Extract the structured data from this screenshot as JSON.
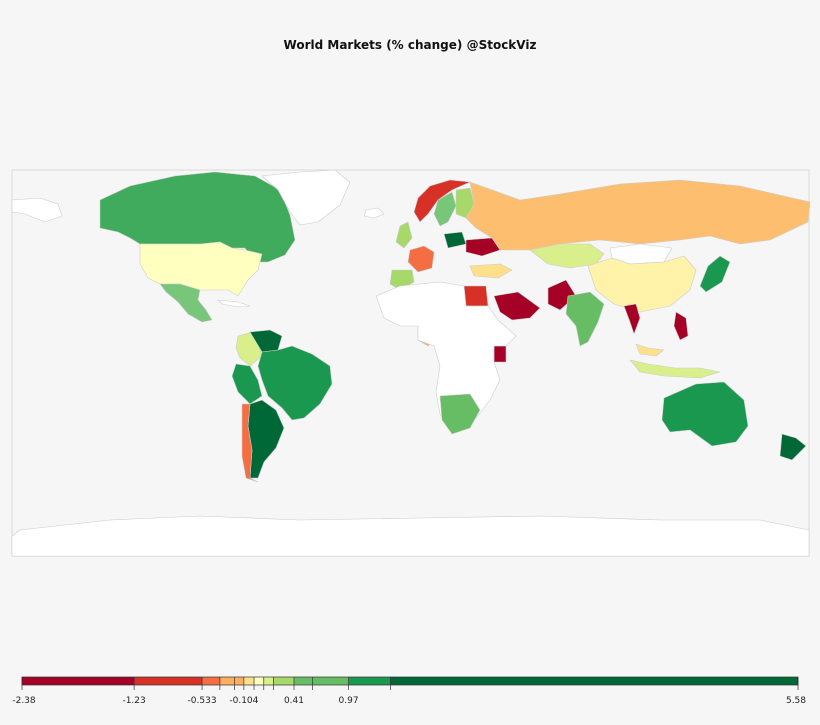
{
  "title": "World Markets (% change) @StockViz",
  "colors": {
    "background": "#f6f6f6",
    "no_data": "#ffffff",
    "border": "#cccccc",
    "scale": [
      "#a50026",
      "#d73027",
      "#f46d43",
      "#fdae61",
      "#fee08b",
      "#ffffbf",
      "#d9ef8b",
      "#a6d96a",
      "#66bd63",
      "#1a9850",
      "#006837"
    ]
  },
  "legend": {
    "min": -2.38,
    "max": 5.58,
    "labels": [
      "-2.38",
      "-1.23",
      "-0.533",
      "-0.104",
      "0.41",
      "0.97",
      "5.58"
    ],
    "label_values": [
      -2.38,
      -1.23,
      -0.533,
      -0.104,
      0.41,
      0.97,
      5.58
    ],
    "thresholds": [
      -2.38,
      -1.23,
      -0.533,
      -0.35,
      -0.2,
      -0.104,
      0.0,
      0.1,
      0.2,
      0.41,
      0.6,
      0.97,
      1.4,
      5.58
    ]
  },
  "chart_data": {
    "type": "heatmap",
    "kind": "choropleth",
    "value_range": [
      -2.38,
      5.58
    ],
    "regions": [
      {
        "name": "Canada",
        "color": "#41ab5d"
      },
      {
        "name": "United States",
        "color": "#ffffbf"
      },
      {
        "name": "Mexico",
        "color": "#78c679"
      },
      {
        "name": "Brazil",
        "color": "#1a9850"
      },
      {
        "name": "Argentina",
        "color": "#006837"
      },
      {
        "name": "Chile",
        "color": "#f46d43"
      },
      {
        "name": "Peru",
        "color": "#1a9850"
      },
      {
        "name": "Colombia",
        "color": "#d9ef8b"
      },
      {
        "name": "Venezuela",
        "color": "#006837"
      },
      {
        "name": "Russia",
        "color": "#fdbf6f"
      },
      {
        "name": "China",
        "color": "#fff3aa"
      },
      {
        "name": "India",
        "color": "#66bd63"
      },
      {
        "name": "Pakistan",
        "color": "#a50026"
      },
      {
        "name": "Saudi Arabia",
        "color": "#a50026"
      },
      {
        "name": "Egypt",
        "color": "#d73027"
      },
      {
        "name": "Kenya",
        "color": "#a50026"
      },
      {
        "name": "Nigeria",
        "color": "#fdae61"
      },
      {
        "name": "South Africa",
        "color": "#66bd63"
      },
      {
        "name": "Australia",
        "color": "#1a9850"
      },
      {
        "name": "New Zealand",
        "color": "#006837"
      },
      {
        "name": "Japan",
        "color": "#1a9850"
      },
      {
        "name": "Thailand",
        "color": "#a50026"
      },
      {
        "name": "Malaysia",
        "color": "#fee08b"
      },
      {
        "name": "Indonesia",
        "color": "#d9ef8b"
      },
      {
        "name": "Philippines",
        "color": "#a50026"
      },
      {
        "name": "Kazakhstan",
        "color": "#d9ef8b"
      },
      {
        "name": "Turkey",
        "color": "#fee08b"
      },
      {
        "name": "Ukraine",
        "color": "#a50026"
      },
      {
        "name": "Poland",
        "color": "#006837"
      },
      {
        "name": "France",
        "color": "#f46d43"
      },
      {
        "name": "Spain",
        "color": "#a6d96a"
      },
      {
        "name": "Sweden",
        "color": "#78c679"
      },
      {
        "name": "Norway",
        "color": "#d73027"
      },
      {
        "name": "Finland",
        "color": "#a6d96a"
      },
      {
        "name": "United Kingdom",
        "color": "#a6d96a"
      },
      {
        "name": "Greenland",
        "color": "#ffffff"
      },
      {
        "name": "Mongolia",
        "color": "#ffffff"
      }
    ]
  }
}
